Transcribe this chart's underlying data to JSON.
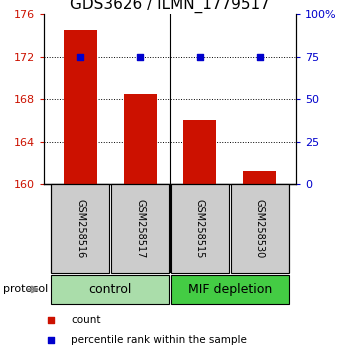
{
  "title": "GDS3626 / ILMN_1779517",
  "samples": [
    "GSM258516",
    "GSM258517",
    "GSM258515",
    "GSM258530"
  ],
  "bar_values": [
    174.5,
    168.5,
    166.0,
    161.2
  ],
  "percentile_values": [
    75,
    75,
    75,
    75
  ],
  "ymin": 160,
  "ymax": 176,
  "yticks": [
    160,
    164,
    168,
    172,
    176
  ],
  "y2min": 0,
  "y2max": 100,
  "y2ticks": [
    0,
    25,
    50,
    75,
    100
  ],
  "y2ticklabels": [
    "0",
    "25",
    "50",
    "75",
    "100%"
  ],
  "bar_color": "#cc1100",
  "dot_color": "#0000cc",
  "groups": [
    {
      "label": "control",
      "color": "#aaddaa"
    },
    {
      "label": "MIF depletion",
      "color": "#44cc44"
    }
  ],
  "legend_items": [
    {
      "color": "#cc1100",
      "label": "count"
    },
    {
      "color": "#0000cc",
      "label": "percentile rank within the sample"
    }
  ],
  "bar_width": 0.55,
  "title_fontsize": 11,
  "tick_fontsize": 8,
  "sample_fontsize": 7,
  "group_fontsize": 9
}
